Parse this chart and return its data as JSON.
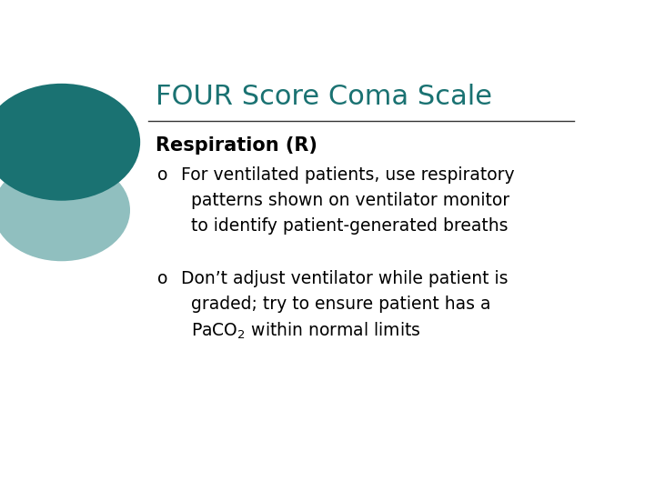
{
  "title": "FOUR Score Coma Scale",
  "title_color": "#1a7272",
  "title_fontsize": 22,
  "background_color": "#ffffff",
  "heading": "Respiration (R)",
  "heading_fontsize": 15,
  "bullet1_line1": "For ventilated patients, use respiratory",
  "bullet1_line2": "patterns shown on ventilator monitor",
  "bullet1_line3": "to identify patient-generated breaths",
  "bullet2_line1": "Don’t adjust ventilator while patient is",
  "bullet2_line2": "graded; try to ensure patient has a",
  "bullet2_line3_pre": "PaCO",
  "bullet2_line3_sub": "2",
  "bullet2_line3_post": " within normal limits",
  "text_color": "#000000",
  "line_color": "#333333",
  "circle_dark_color": "#1a7272",
  "circle_light_color": "#90bfbf",
  "text_fontsize": 13.5
}
